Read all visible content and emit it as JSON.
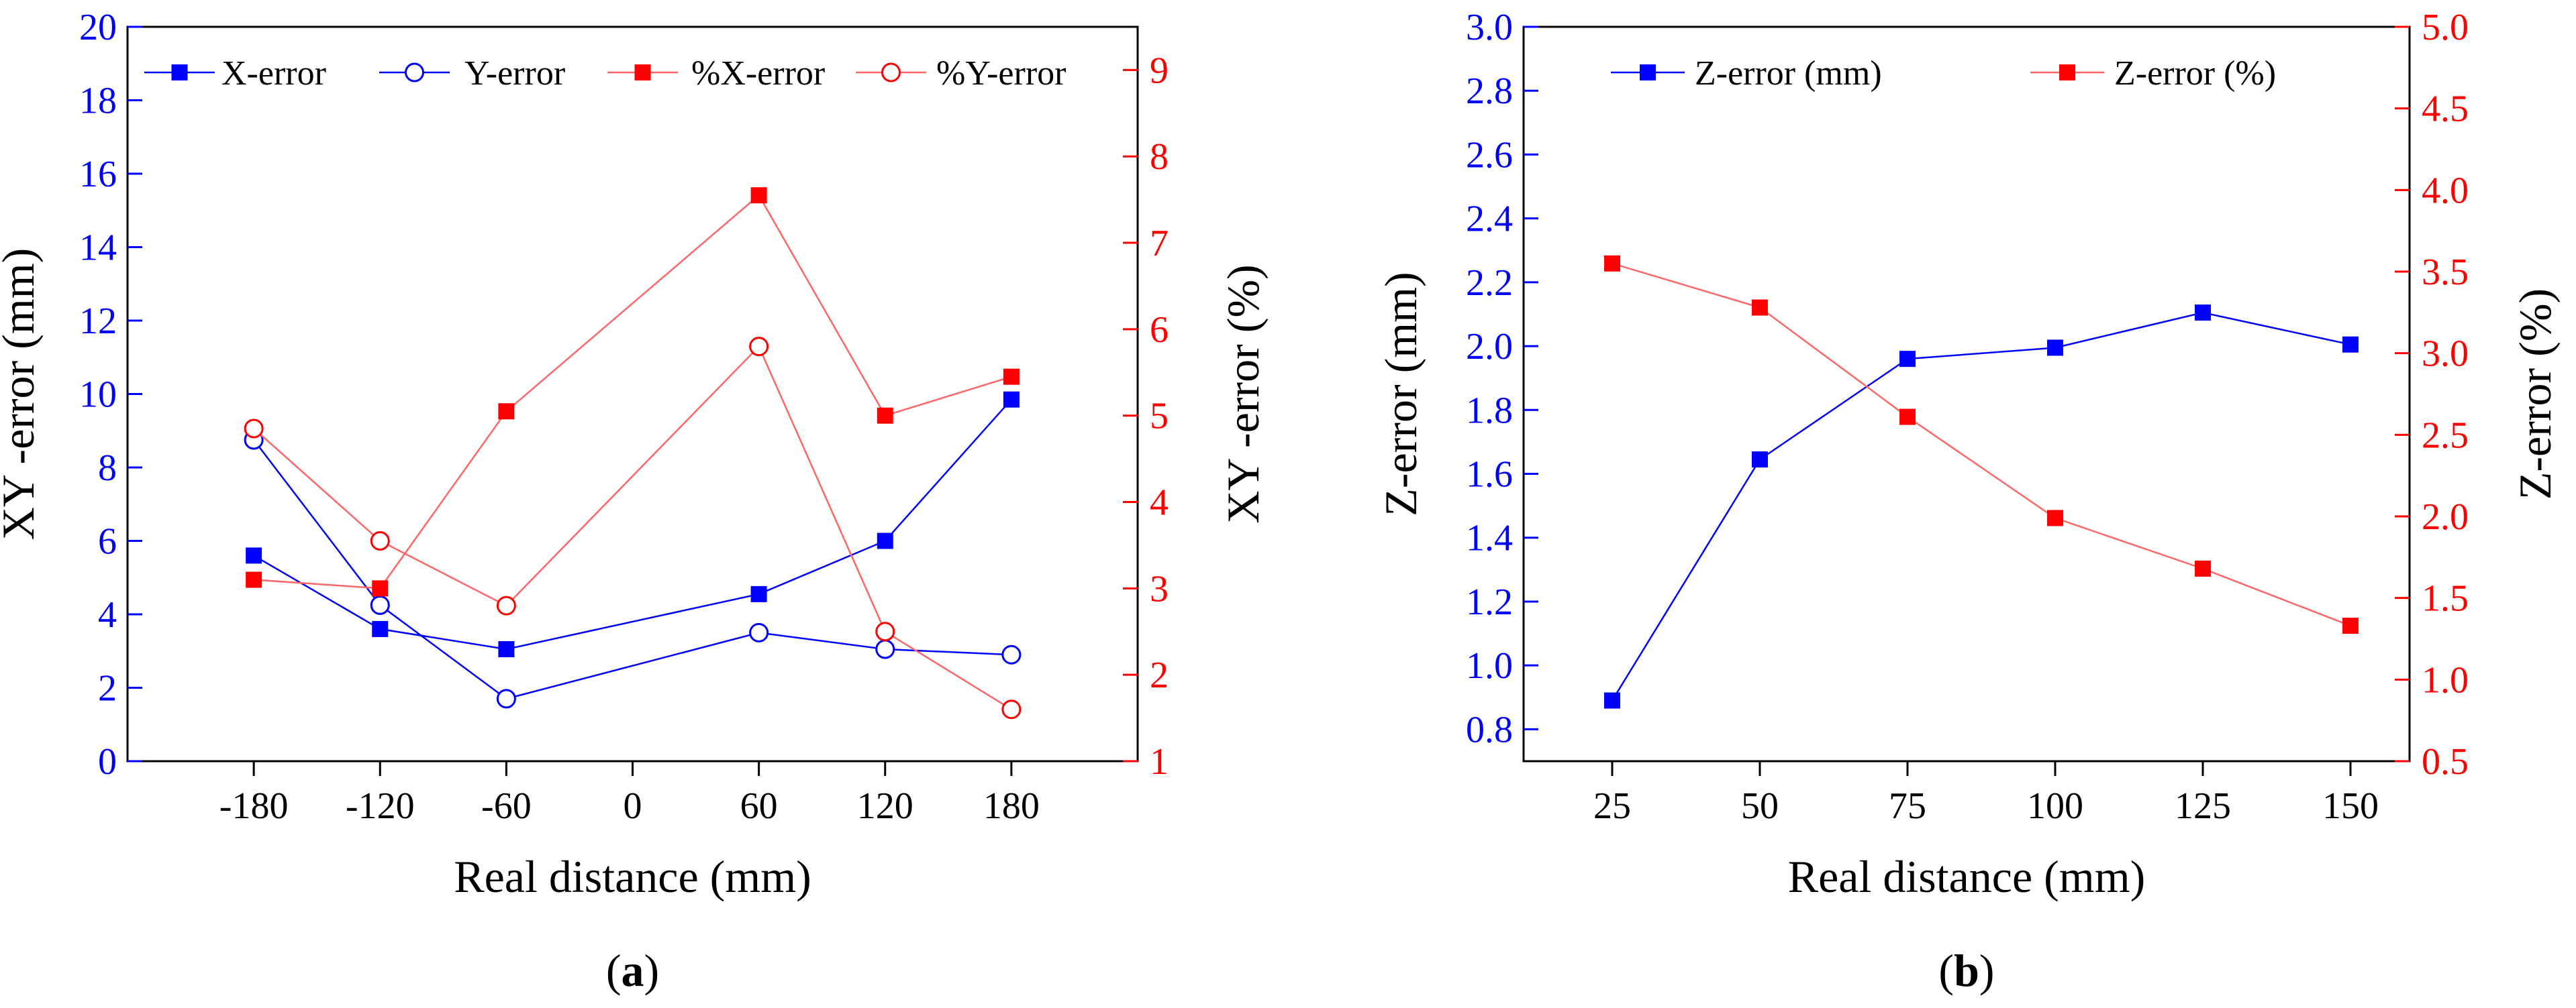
{
  "colors": {
    "blue": "#0000ff",
    "red": "#ff0000",
    "red_light": "#ff6666"
  },
  "chart_data": [
    {
      "panel": "(a)",
      "panel_letter": "a",
      "type": "line",
      "xlabel": "Real distance (mm)",
      "ylabel": "XY -error (mm)",
      "y2label": "XY -error (%)",
      "xlim": [
        -240,
        240
      ],
      "ylim": [
        0,
        20
      ],
      "y2lim": [
        1,
        9.5
      ],
      "xticks": [
        -180,
        -120,
        -60,
        0,
        60,
        120,
        180
      ],
      "yticks": [
        0,
        2,
        4,
        6,
        8,
        10,
        12,
        14,
        16,
        18,
        20
      ],
      "y2ticks": [
        1,
        2,
        3,
        4,
        5,
        6,
        7,
        8,
        9
      ],
      "legend_position": "top",
      "series": [
        {
          "name": "X-error",
          "axis": "left",
          "marker": "square",
          "color": "#0000ff",
          "x": [
            -180,
            -120,
            -60,
            60,
            120,
            180
          ],
          "y": [
            5.6,
            3.6,
            3.05,
            4.55,
            6.0,
            9.85
          ]
        },
        {
          "name": "Y-error",
          "axis": "left",
          "marker": "circle",
          "color": "#0000ff",
          "x": [
            -180,
            -120,
            -60,
            60,
            120,
            180
          ],
          "y": [
            8.75,
            4.25,
            1.7,
            3.5,
            3.05,
            2.9
          ]
        },
        {
          "name": "%X-error",
          "axis": "right",
          "marker": "square",
          "color": "#ff0000",
          "x": [
            -180,
            -120,
            -60,
            60,
            120,
            180
          ],
          "y": [
            3.1,
            3.0,
            5.05,
            7.55,
            5.0,
            5.45
          ]
        },
        {
          "name": "%Y-error",
          "axis": "right",
          "marker": "circle",
          "color": "#ff0000",
          "x": [
            -180,
            -120,
            -60,
            60,
            120,
            180
          ],
          "y": [
            4.85,
            3.55,
            2.8,
            5.8,
            2.5,
            1.6
          ]
        }
      ]
    },
    {
      "panel": "(b)",
      "panel_letter": "b",
      "type": "line",
      "xlabel": "Real distance (mm)",
      "ylabel": "Z-error (mm)",
      "y2label": "Z-error (%)",
      "xlim": [
        10,
        160
      ],
      "ylim": [
        0.7,
        3.0
      ],
      "y2lim": [
        0.5,
        5.0
      ],
      "xticks": [
        25,
        50,
        75,
        100,
        125,
        150
      ],
      "yticks": [
        0.8,
        1.0,
        1.2,
        1.4,
        1.6,
        1.8,
        2.0,
        2.2,
        2.4,
        2.6,
        2.8,
        3.0
      ],
      "y2ticks": [
        0.5,
        1.0,
        1.5,
        2.0,
        2.5,
        3.0,
        3.5,
        4.0,
        4.5,
        5.0
      ],
      "legend_position": "top",
      "series": [
        {
          "name": "Z-error (mm)",
          "axis": "left",
          "marker": "square",
          "color": "#0000ff",
          "x": [
            25,
            50,
            75,
            100,
            125,
            150
          ],
          "y": [
            0.89,
            1.645,
            1.96,
            1.995,
            2.105,
            2.005
          ]
        },
        {
          "name": "Z-error (%)",
          "axis": "right",
          "marker": "square",
          "color": "#ff0000",
          "x": [
            25,
            50,
            75,
            100,
            125,
            150
          ],
          "y": [
            3.55,
            3.28,
            2.61,
            1.99,
            1.68,
            1.33
          ]
        }
      ]
    }
  ]
}
